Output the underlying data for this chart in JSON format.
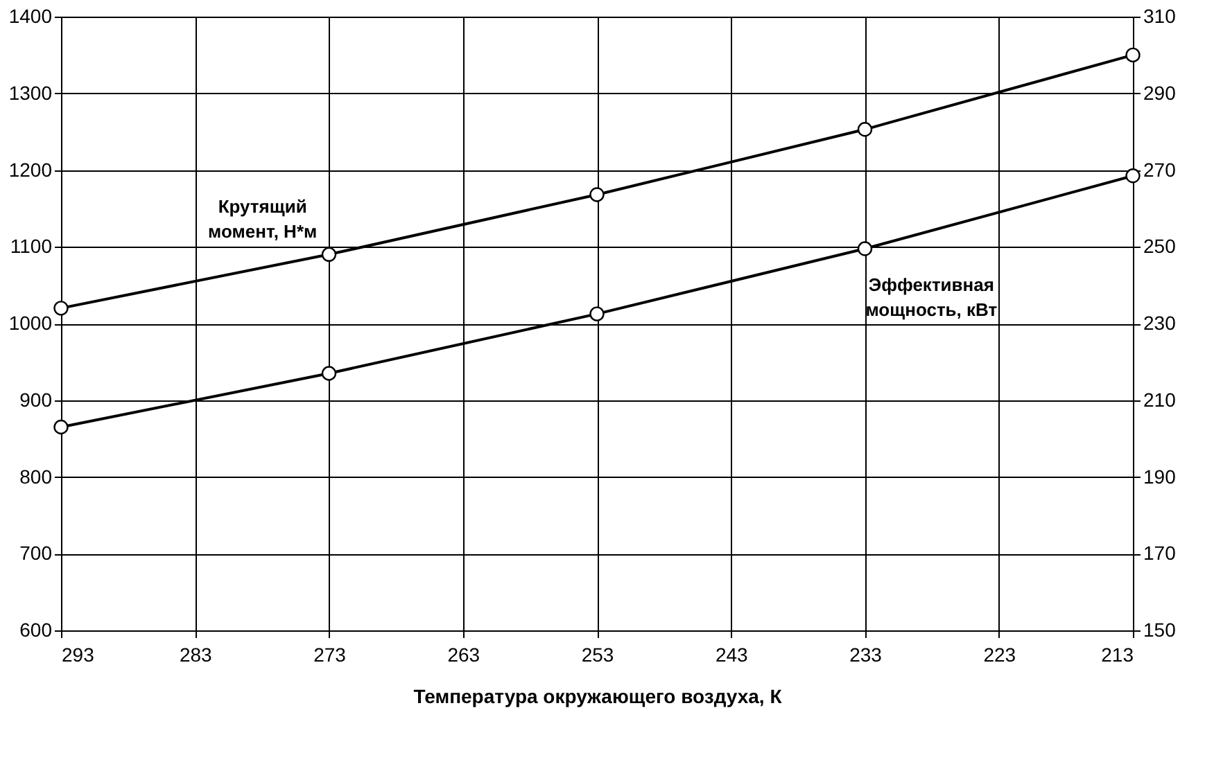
{
  "chart_data": {
    "type": "line",
    "xlabel": "Температура окружающего воздуха, К",
    "x": [
      293,
      273,
      253,
      233,
      213
    ],
    "xlim": [
      293,
      213
    ],
    "xticks": [
      293,
      283,
      273,
      263,
      253,
      243,
      233,
      223,
      213
    ],
    "ylim": [
      600,
      1400
    ],
    "yticks": [
      600,
      700,
      800,
      900,
      1000,
      1100,
      1200,
      1300,
      1400
    ],
    "y2lim": [
      150,
      310
    ],
    "y2ticks": [
      150,
      170,
      190,
      210,
      230,
      250,
      270,
      290,
      310
    ],
    "grid": true,
    "marker": "circle",
    "line_style": "solid",
    "legend": false,
    "series": [
      {
        "name": "Крутящий момент, Н*м",
        "color": "#000000",
        "values": [
          1020,
          1090,
          1168,
          1253,
          1350
        ]
      },
      {
        "name": "Эффективная мощность, кВт",
        "color": "#000000",
        "axis": "y2",
        "values": [
          203,
          217,
          232.5,
          249.5,
          268.5
        ]
      }
    ]
  }
}
